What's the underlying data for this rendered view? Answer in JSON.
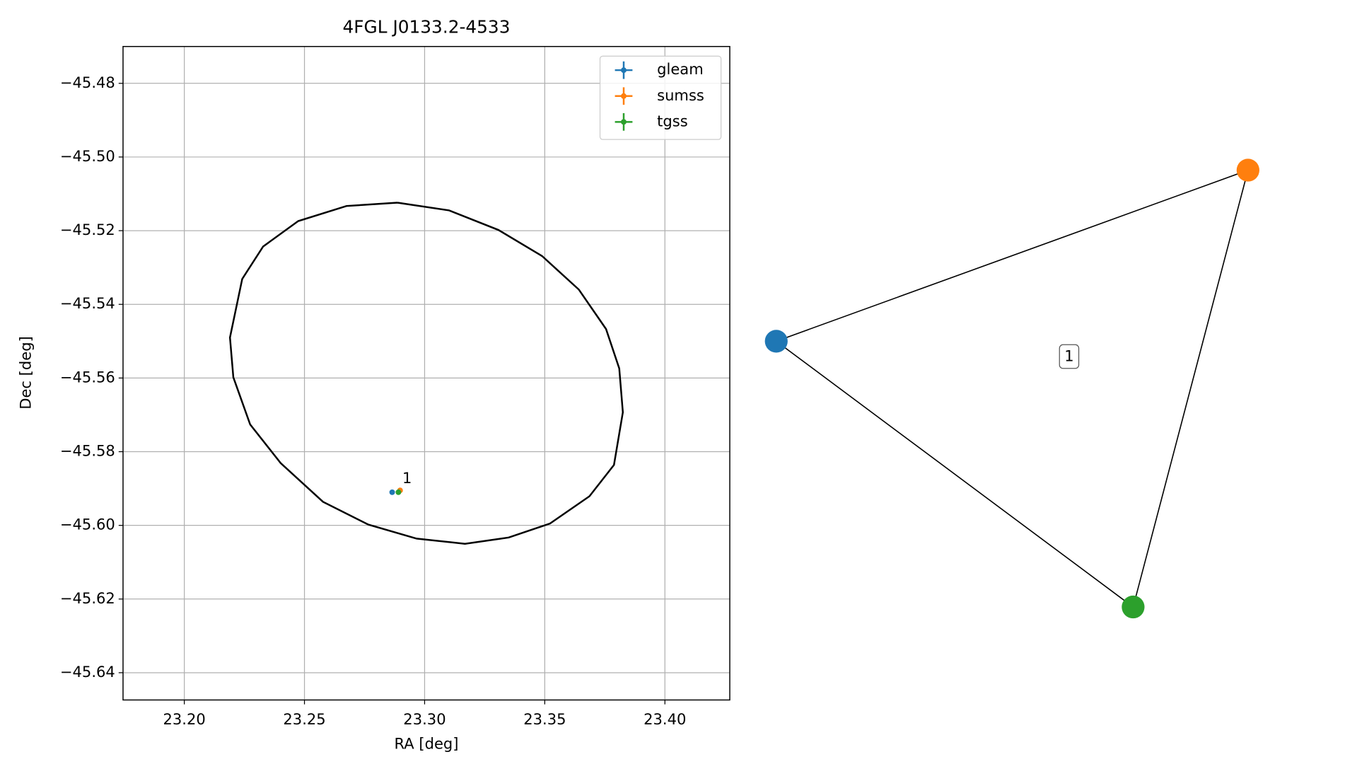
{
  "chart_data": {
    "type": "scatter",
    "title": "4FGL J0133.2-4533",
    "xlabel": "RA [deg]",
    "ylabel": "Dec [deg]",
    "xlim": [
      23.1745,
      23.427
    ],
    "ylim": [
      -45.6474,
      -45.47
    ],
    "xticks": [
      {
        "value": 23.2,
        "label": "23.20"
      },
      {
        "value": 23.25,
        "label": "23.25"
      },
      {
        "value": 23.3,
        "label": "23.30"
      },
      {
        "value": 23.35,
        "label": "23.35"
      },
      {
        "value": 23.4,
        "label": "23.40"
      }
    ],
    "yticks": [
      {
        "value": -45.48,
        "label": "−45.48"
      },
      {
        "value": -45.5,
        "label": "−45.50"
      },
      {
        "value": -45.52,
        "label": "−45.52"
      },
      {
        "value": -45.54,
        "label": "−45.54"
      },
      {
        "value": -45.56,
        "label": "−45.56"
      },
      {
        "value": -45.58,
        "label": "−45.58"
      },
      {
        "value": -45.6,
        "label": "−45.60"
      },
      {
        "value": -45.62,
        "label": "−45.62"
      },
      {
        "value": -45.64,
        "label": "−45.64"
      }
    ],
    "grid": true,
    "legend": "upper right",
    "series": [
      {
        "name": "gleam",
        "color": "#1f77b4",
        "x": [
          23.2865
        ],
        "values": [
          -45.591
        ],
        "xerr": [
          0.0008
        ],
        "yerr": [
          0.0004
        ]
      },
      {
        "name": "sumss",
        "color": "#ff7f0e",
        "x": [
          23.2898
        ],
        "values": [
          -45.5905
        ],
        "xerr": [
          0.0003
        ],
        "yerr": [
          0.0003
        ]
      },
      {
        "name": "tgss",
        "color": "#2ca02c",
        "x": [
          23.2891
        ],
        "values": [
          -45.591
        ],
        "xerr": [
          0.0003
        ],
        "yerr": [
          0.0003
        ]
      }
    ],
    "outline": {
      "color": "#000000",
      "x": [
        23.2887,
        23.3102,
        23.3307,
        23.3489,
        23.3642,
        23.3755,
        23.381,
        23.3825,
        23.3788,
        23.3686,
        23.3522,
        23.335,
        23.3168,
        23.2967,
        23.2766,
        23.2577,
        23.2401,
        23.2274,
        23.2204,
        23.219,
        23.2241,
        23.2328,
        23.2474,
        23.2675,
        23.2887
      ],
      "values": [
        -45.5124,
        -45.5145,
        -45.5198,
        -45.5269,
        -45.536,
        -45.5467,
        -45.5574,
        -45.5693,
        -45.5836,
        -45.5921,
        -45.5995,
        -45.6033,
        -45.605,
        -45.6036,
        -45.5998,
        -45.5936,
        -45.5831,
        -45.5726,
        -45.5598,
        -45.549,
        -45.5331,
        -45.5243,
        -45.5174,
        -45.5133,
        -45.5124
      ]
    },
    "annotation": {
      "text": "1",
      "x": 23.2927,
      "y": -45.5874
    }
  },
  "graph": {
    "nodes": [
      {
        "color": "#1f77b4"
      },
      {
        "color": "#ff7f0e"
      },
      {
        "color": "#2ca02c"
      }
    ],
    "edge_label": "1"
  }
}
